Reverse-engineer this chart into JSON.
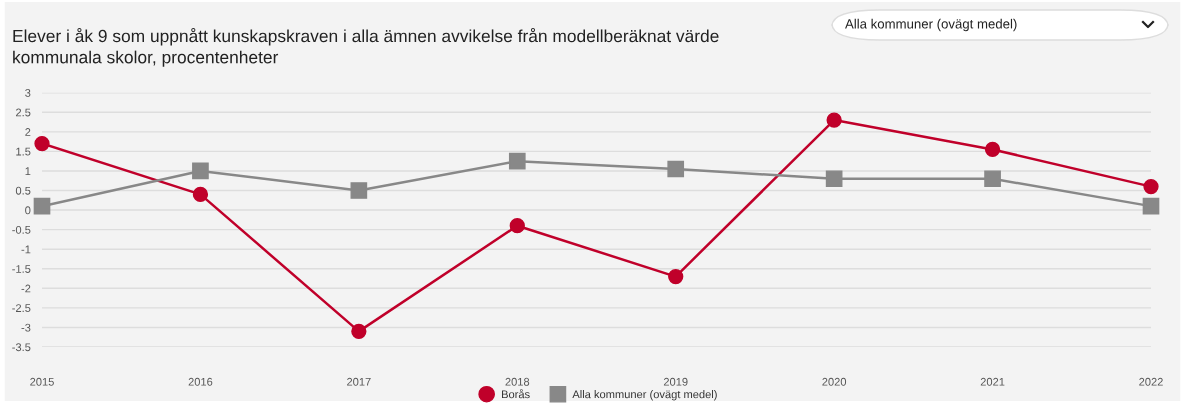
{
  "chart_data": {
    "type": "line",
    "title": "Elever i åk 9 som uppnått kunskapskraven i alla ämnen avvikelse från modellberäknat värde kommunala skolor, procentenheter",
    "annotations": [
      "Alla kommuner (ovägt medel)"
    ],
    "categories": [
      "2015",
      "2016",
      "2017",
      "2018",
      "2019",
      "2020",
      "2021",
      "2022"
    ],
    "series": [
      {
        "name": "Borås",
        "color": "#c0002a",
        "marker": "circle",
        "values": [
          1.7,
          0.4,
          -3.1,
          -0.4,
          -1.7,
          2.3,
          1.55,
          0.6
        ]
      },
      {
        "name": "Alla kommuner (ovägt medel)",
        "color": "#888888",
        "marker": "square",
        "values": [
          0.1,
          1.0,
          0.5,
          1.25,
          1.05,
          0.8,
          0.8,
          0.1
        ]
      }
    ],
    "ylim": [
      -3.5,
      3
    ],
    "yticks": [
      -3.5,
      -3,
      -2.5,
      -2,
      -1.5,
      -1,
      -0.5,
      0,
      0.5,
      1,
      1.5,
      2,
      2.5,
      3
    ],
    "grid": "y",
    "legend": "bottom",
    "line_style": "solid"
  }
}
